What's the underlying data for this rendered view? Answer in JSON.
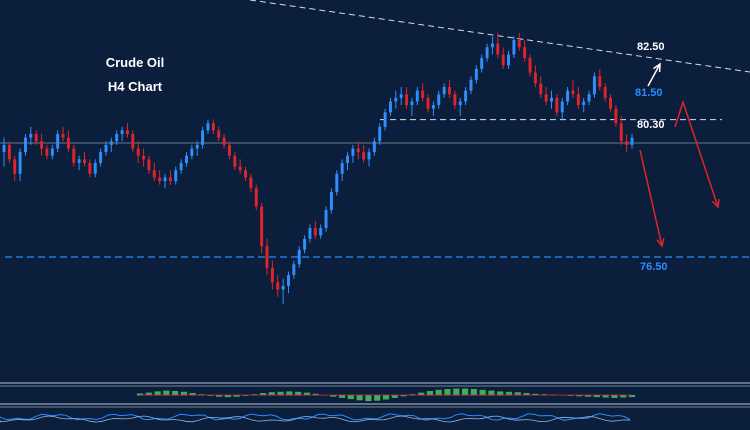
{
  "chart_data": {
    "type": "candlestick",
    "title_line1": "Crude Oil",
    "title_line2": "H4  Chart",
    "colors": {
      "background": "#0b1e3b",
      "bull_candle": "#2f8fff",
      "bear_candle": "#e0242c",
      "level_white": "#ffffff",
      "level_blue": "#2b8cff",
      "arrow_red": "#e0242c",
      "arrow_white": "#ffffff",
      "histogram": "#3fae5c"
    },
    "price_range": [
      75.0,
      83.5
    ],
    "candles": [
      [
        79.4,
        79.8,
        79.0,
        79.6
      ],
      [
        79.6,
        79.7,
        79.1,
        79.2
      ],
      [
        79.2,
        79.3,
        78.6,
        78.8
      ],
      [
        78.8,
        79.5,
        78.6,
        79.4
      ],
      [
        79.4,
        79.9,
        79.3,
        79.8
      ],
      [
        79.8,
        80.1,
        79.6,
        79.9
      ],
      [
        79.9,
        80.0,
        79.6,
        79.7
      ],
      [
        79.7,
        79.9,
        79.3,
        79.5
      ],
      [
        79.5,
        79.6,
        79.2,
        79.3
      ],
      [
        79.3,
        79.6,
        79.2,
        79.5
      ],
      [
        79.5,
        80.0,
        79.4,
        79.9
      ],
      [
        79.9,
        80.1,
        79.7,
        79.8
      ],
      [
        79.8,
        80.0,
        79.4,
        79.5
      ],
      [
        79.5,
        79.6,
        79.0,
        79.1
      ],
      [
        79.1,
        79.3,
        78.9,
        79.2
      ],
      [
        79.2,
        79.4,
        79.0,
        79.1
      ],
      [
        79.1,
        79.2,
        78.7,
        78.8
      ],
      [
        78.8,
        79.2,
        78.7,
        79.1
      ],
      [
        79.1,
        79.5,
        79.0,
        79.4
      ],
      [
        79.4,
        79.7,
        79.3,
        79.6
      ],
      [
        79.6,
        79.8,
        79.4,
        79.7
      ],
      [
        79.7,
        80.0,
        79.6,
        79.9
      ],
      [
        79.9,
        80.1,
        79.7,
        80.0
      ],
      [
        80.0,
        80.2,
        79.8,
        79.9
      ],
      [
        79.9,
        80.0,
        79.4,
        79.5
      ],
      [
        79.5,
        79.7,
        79.1,
        79.3
      ],
      [
        79.3,
        79.5,
        79.0,
        79.2
      ],
      [
        79.2,
        79.3,
        78.8,
        78.9
      ],
      [
        78.9,
        79.1,
        78.6,
        78.7
      ],
      [
        78.7,
        78.9,
        78.5,
        78.6
      ],
      [
        78.6,
        78.8,
        78.4,
        78.7
      ],
      [
        78.7,
        78.9,
        78.5,
        78.6
      ],
      [
        78.6,
        79.0,
        78.5,
        78.9
      ],
      [
        78.9,
        79.2,
        78.8,
        79.1
      ],
      [
        79.1,
        79.4,
        79.0,
        79.3
      ],
      [
        79.3,
        79.6,
        79.2,
        79.5
      ],
      [
        79.5,
        79.7,
        79.3,
        79.6
      ],
      [
        79.6,
        80.1,
        79.5,
        80.0
      ],
      [
        80.0,
        80.3,
        79.9,
        80.2
      ],
      [
        80.2,
        80.3,
        79.9,
        80.0
      ],
      [
        80.0,
        80.1,
        79.7,
        79.8
      ],
      [
        79.8,
        79.9,
        79.5,
        79.6
      ],
      [
        79.6,
        79.7,
        79.2,
        79.3
      ],
      [
        79.3,
        79.4,
        78.9,
        79.0
      ],
      [
        79.0,
        79.2,
        78.8,
        78.9
      ],
      [
        78.9,
        79.0,
        78.6,
        78.7
      ],
      [
        78.7,
        78.8,
        78.3,
        78.4
      ],
      [
        78.4,
        78.5,
        77.8,
        77.9
      ],
      [
        77.9,
        78.0,
        76.6,
        76.8
      ],
      [
        76.8,
        77.0,
        76.0,
        76.2
      ],
      [
        76.2,
        76.4,
        75.6,
        75.8
      ],
      [
        75.8,
        76.0,
        75.4,
        75.6
      ],
      [
        75.6,
        75.9,
        75.2,
        75.7
      ],
      [
        75.7,
        76.1,
        75.5,
        76.0
      ],
      [
        76.0,
        76.4,
        75.9,
        76.3
      ],
      [
        76.3,
        76.8,
        76.2,
        76.7
      ],
      [
        76.7,
        77.1,
        76.6,
        77.0
      ],
      [
        77.0,
        77.4,
        76.9,
        77.3
      ],
      [
        77.3,
        77.5,
        77.0,
        77.1
      ],
      [
        77.1,
        77.4,
        77.0,
        77.3
      ],
      [
        77.3,
        77.9,
        77.2,
        77.8
      ],
      [
        77.8,
        78.4,
        77.7,
        78.3
      ],
      [
        78.3,
        78.9,
        78.2,
        78.8
      ],
      [
        78.8,
        79.2,
        78.6,
        79.1
      ],
      [
        79.1,
        79.4,
        78.9,
        79.3
      ],
      [
        79.3,
        79.6,
        79.1,
        79.5
      ],
      [
        79.5,
        79.7,
        79.2,
        79.4
      ],
      [
        79.4,
        79.6,
        79.1,
        79.2
      ],
      [
        79.2,
        79.5,
        79.0,
        79.4
      ],
      [
        79.4,
        79.8,
        79.3,
        79.7
      ],
      [
        79.7,
        80.2,
        79.6,
        80.1
      ],
      [
        80.1,
        80.6,
        80.0,
        80.5
      ],
      [
        80.5,
        80.9,
        80.4,
        80.8
      ],
      [
        80.8,
        81.1,
        80.6,
        80.9
      ],
      [
        80.9,
        81.2,
        80.7,
        81.0
      ],
      [
        81.0,
        81.2,
        80.6,
        80.7
      ],
      [
        80.7,
        80.9,
        80.4,
        80.8
      ],
      [
        80.8,
        81.2,
        80.7,
        81.1
      ],
      [
        81.1,
        81.3,
        80.8,
        80.9
      ],
      [
        80.9,
        81.0,
        80.5,
        80.6
      ],
      [
        80.6,
        80.8,
        80.4,
        80.7
      ],
      [
        80.7,
        81.1,
        80.6,
        81.0
      ],
      [
        81.0,
        81.3,
        80.9,
        81.2
      ],
      [
        81.2,
        81.4,
        80.9,
        81.0
      ],
      [
        81.0,
        81.1,
        80.6,
        80.7
      ],
      [
        80.7,
        80.9,
        80.4,
        80.8
      ],
      [
        80.8,
        81.2,
        80.7,
        81.1
      ],
      [
        81.1,
        81.5,
        81.0,
        81.4
      ],
      [
        81.4,
        81.8,
        81.3,
        81.7
      ],
      [
        81.7,
        82.1,
        81.6,
        82.0
      ],
      [
        82.0,
        82.4,
        81.9,
        82.3
      ],
      [
        82.3,
        82.6,
        82.1,
        82.4
      ],
      [
        82.4,
        82.7,
        82.0,
        82.1
      ],
      [
        82.1,
        82.3,
        81.7,
        81.8
      ],
      [
        81.8,
        82.2,
        81.7,
        82.1
      ],
      [
        82.1,
        82.6,
        82.0,
        82.5
      ],
      [
        82.5,
        82.7,
        82.2,
        82.3
      ],
      [
        82.3,
        82.5,
        81.9,
        82.0
      ],
      [
        82.0,
        82.1,
        81.5,
        81.6
      ],
      [
        81.6,
        81.8,
        81.2,
        81.3
      ],
      [
        81.3,
        81.5,
        80.9,
        81.0
      ],
      [
        81.0,
        81.2,
        80.7,
        80.8
      ],
      [
        80.8,
        81.1,
        80.6,
        80.9
      ],
      [
        80.9,
        81.0,
        80.4,
        80.5
      ],
      [
        80.5,
        80.9,
        80.3,
        80.8
      ],
      [
        80.8,
        81.2,
        80.7,
        81.1
      ],
      [
        81.1,
        81.4,
        80.9,
        81.0
      ],
      [
        81.0,
        81.2,
        80.6,
        80.7
      ],
      [
        80.7,
        80.9,
        80.5,
        80.8
      ],
      [
        80.8,
        81.1,
        80.7,
        81.0
      ],
      [
        81.0,
        81.6,
        80.9,
        81.5
      ],
      [
        81.5,
        81.7,
        81.1,
        81.2
      ],
      [
        81.2,
        81.3,
        80.8,
        80.9
      ],
      [
        80.9,
        81.0,
        80.5,
        80.6
      ],
      [
        80.6,
        80.7,
        80.1,
        80.2
      ],
      [
        80.2,
        80.4,
        79.6,
        79.7
      ],
      [
        79.7,
        79.9,
        79.4,
        79.6
      ],
      [
        79.6,
        79.9,
        79.5,
        79.8
      ]
    ],
    "levels": [
      {
        "price": 82.5,
        "label": "82.50"
      },
      {
        "price": 81.5,
        "label": "81.50"
      },
      {
        "price": 80.3,
        "label": "80.30"
      },
      {
        "price": 76.5,
        "label": "76.50"
      }
    ],
    "indicator": {
      "histogram": [
        0.4,
        0.6,
        0.9,
        1.1,
        1.0,
        0.8,
        0.5,
        0.2,
        -0.1,
        -0.3,
        -0.4,
        -0.3,
        -0.1,
        0.2,
        0.5,
        0.7,
        0.8,
        0.9,
        0.8,
        0.6,
        0.3,
        0.0,
        -0.3,
        -0.6,
        -0.9,
        -1.2,
        -1.4,
        -1.3,
        -1.0,
        -0.6,
        -0.2,
        0.2,
        0.6,
        1.0,
        1.3,
        1.5,
        1.6,
        1.6,
        1.5,
        1.3,
        1.1,
        0.9,
        0.8,
        0.7,
        0.5,
        0.3,
        0.2,
        0.1,
        0.0,
        -0.1,
        -0.2,
        -0.3,
        -0.4,
        -0.5,
        -0.6,
        -0.5,
        -0.4
      ]
    }
  }
}
